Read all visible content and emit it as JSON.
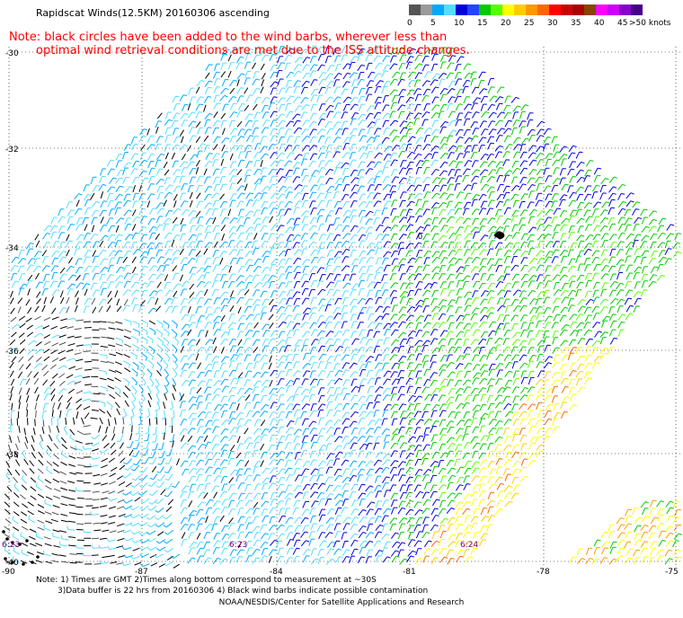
{
  "title": "Rapidscat Winds(12.5KM) 20160306 ascending",
  "note": {
    "line1": "Note: black circles have been added to the wind barbs, wherever less than",
    "line2": "optimal wind retrieval conditions are met due to the ISS attitude changes."
  },
  "colorbar": {
    "units": "knots",
    "segments": [
      {
        "label": "0",
        "color": "#555555"
      },
      {
        "label": "",
        "color": "#9a9a9a"
      },
      {
        "label": "5",
        "color": "#00aaff"
      },
      {
        "label": "",
        "color": "#55ddff"
      },
      {
        "label": "10",
        "color": "#0000dd"
      },
      {
        "label": "",
        "color": "#2244ff"
      },
      {
        "label": "15",
        "color": "#00cc00"
      },
      {
        "label": "",
        "color": "#55ff00"
      },
      {
        "label": "20",
        "color": "#ffff00"
      },
      {
        "label": "",
        "color": "#ffcc00"
      },
      {
        "label": "25",
        "color": "#ff9900"
      },
      {
        "label": "",
        "color": "#ff6600"
      },
      {
        "label": "30",
        "color": "#ff0000"
      },
      {
        "label": "",
        "color": "#cc0000"
      },
      {
        "label": "35",
        "color": "#aa0000"
      },
      {
        "label": "",
        "color": "#884400"
      },
      {
        "label": "40",
        "color": "#ff00ff"
      },
      {
        "label": "",
        "color": "#cc00ff"
      },
      {
        "label": "45",
        "color": "#8800cc"
      },
      {
        "label": ">50 knots",
        "color": "#440088"
      }
    ]
  },
  "map": {
    "latitudes": [
      "-30",
      "-32",
      "-34",
      "-36",
      "-38",
      "-40"
    ],
    "longitudes": [
      "-90",
      "-87",
      "-84",
      "-81",
      "-78",
      "-75"
    ],
    "time_labels": [
      "6:23",
      "6:23",
      "6:24"
    ],
    "center_marker": "0"
  },
  "footer": {
    "line1": "Note: 1) Times are GMT 2)Times along bottom correspond to measurement at ~30S",
    "line2": "3)Data buffer is 22 hrs from 20160306 4) Black wind barbs indicate possible contamination",
    "credit": "NOAA/NESDIS/Center for Satellite Applications and Research"
  },
  "colors": {
    "note": "#ff0000",
    "time_label": "#800080",
    "grid": "#000000"
  }
}
